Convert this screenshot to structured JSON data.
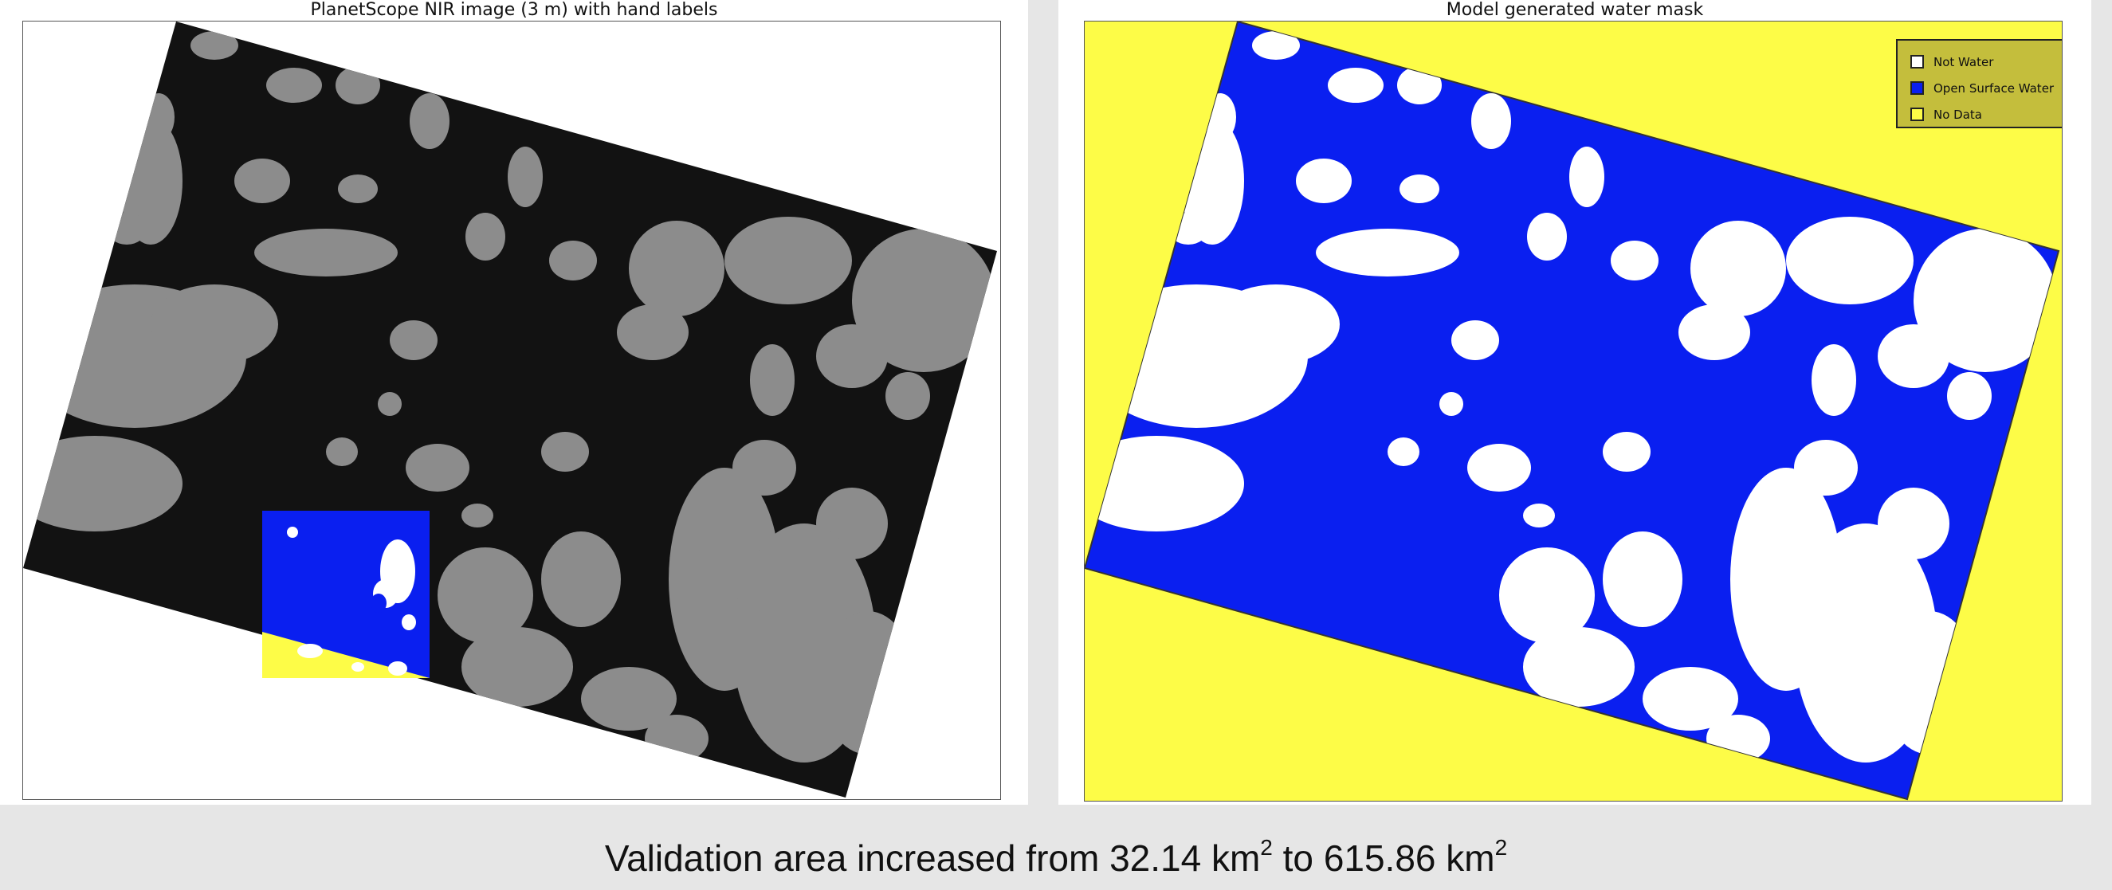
{
  "left_panel": {
    "title": "PlanetScope NIR image (3 m) with hand labels"
  },
  "right_panel": {
    "title": "Model generated water mask"
  },
  "legend": {
    "background": "#c4be3c",
    "items": [
      {
        "label": "Not Water",
        "color": "#ffffff"
      },
      {
        "label": "Open Surface Water",
        "color": "#0a1ff0"
      },
      {
        "label": "No Data",
        "color": "#fdfc47"
      }
    ]
  },
  "caption": {
    "prefix": "Validation area increased from ",
    "value1": "32.14 km",
    "exp1": "2",
    "middle": " to ",
    "value2": "615.86 km",
    "exp2": "2"
  },
  "colors": {
    "water": "#0a1ff0",
    "land": "#ffffff",
    "no_data": "#fdfc47",
    "image_dark": "#121212",
    "rock_gray": "#8c8c8c"
  }
}
